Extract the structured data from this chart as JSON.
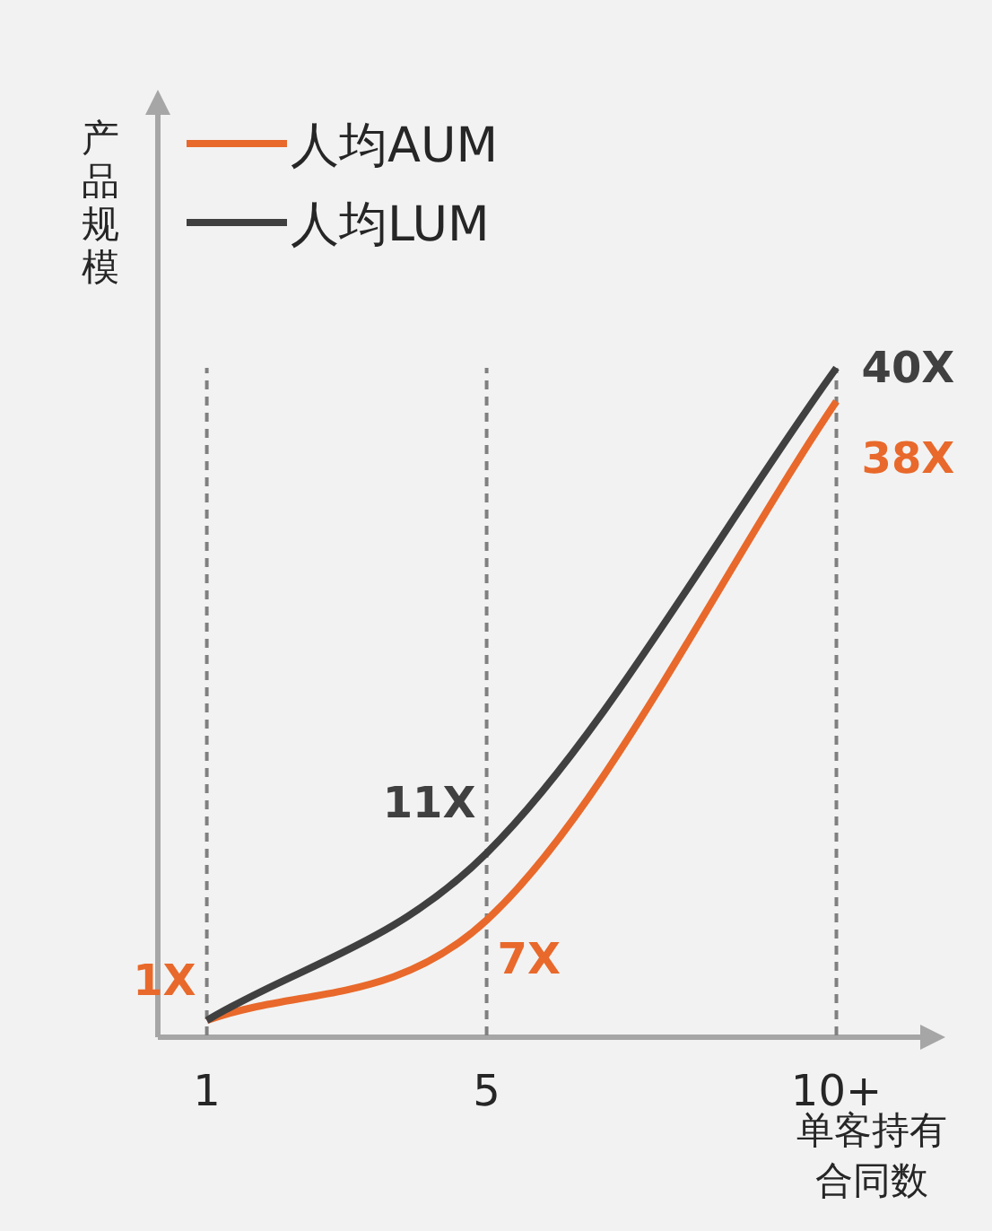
{
  "chart_data": {
    "type": "line",
    "xlabel": "单客持有合同数",
    "ylabel": "产品规模",
    "xlim": [
      0.3,
      11.25
    ],
    "xticks": [
      1,
      5,
      {
        "value": 10,
        "label": "10+"
      }
    ],
    "tick_labels": "x",
    "legend": "top left",
    "marker": "none",
    "line_style": "solid",
    "ref_lines": [
      {
        "axis": "x",
        "value": 1,
        "color": "#808080",
        "line_style": "dashed"
      },
      {
        "axis": "x",
        "value": 5,
        "color": "#808080",
        "line_style": "dashed"
      },
      {
        "axis": "x",
        "value": 10,
        "color": "#808080",
        "line_style": "dashed"
      }
    ],
    "series": [
      {
        "name": "人均AUM",
        "color": "#e8692b",
        "x": [
          1,
          5,
          10
        ],
        "values": [
          1,
          7,
          38
        ],
        "value_labels": [
          "1X",
          "7X",
          "38X"
        ]
      },
      {
        "name": "人均LUM",
        "color": "#404040",
        "x": [
          1,
          5,
          10
        ],
        "values": [
          1,
          11,
          40
        ],
        "value_labels": [
          null,
          "11X",
          "40X"
        ]
      }
    ]
  }
}
